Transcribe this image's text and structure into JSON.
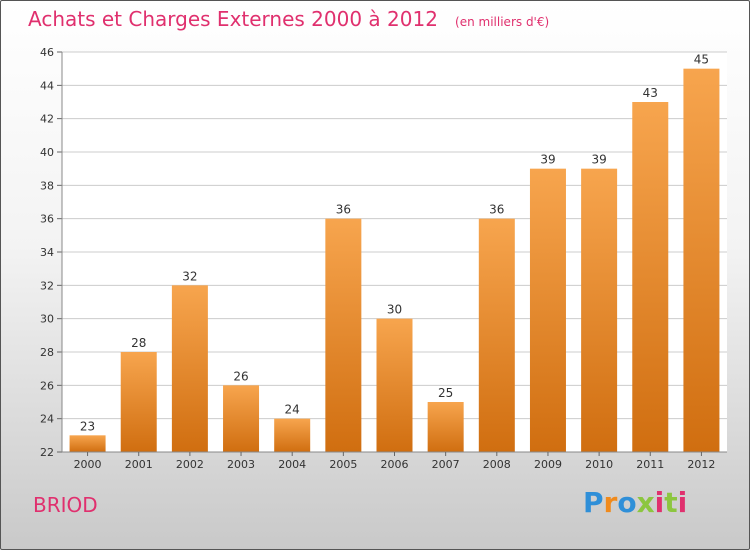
{
  "title": "Achats et Charges Externes 2000 à 2012",
  "unit": "(en milliers d'€)",
  "commune": "BRIOD",
  "brand": {
    "letters": [
      "P",
      "r",
      "o",
      "x",
      "i",
      "t",
      "i"
    ],
    "colors": [
      "#2f8fd8",
      "#f08a1c",
      "#2f8fd8",
      "#8cc63f",
      "#e0306e",
      "#8cc63f",
      "#e0306e"
    ]
  },
  "colors": {
    "bar_top": "#f7a54e",
    "bar_bottom": "#d06e10",
    "title": "#e0306e",
    "grid": "#cccccc"
  },
  "chart_data": {
    "type": "bar",
    "title": "Achats et Charges Externes 2000 à 2012",
    "subtitle": "(en milliers d'€)",
    "xlabel": "",
    "ylabel": "",
    "categories": [
      "2000",
      "2001",
      "2002",
      "2003",
      "2004",
      "2005",
      "2006",
      "2007",
      "2008",
      "2009",
      "2010",
      "2011",
      "2012"
    ],
    "values": [
      23,
      28,
      32,
      26,
      24,
      36,
      30,
      25,
      36,
      39,
      39,
      43,
      45
    ],
    "ylim": [
      22,
      46
    ],
    "yticks": [
      22,
      24,
      26,
      28,
      30,
      32,
      34,
      36,
      38,
      40,
      42,
      44,
      46
    ],
    "grid": true,
    "data_labels": true
  }
}
